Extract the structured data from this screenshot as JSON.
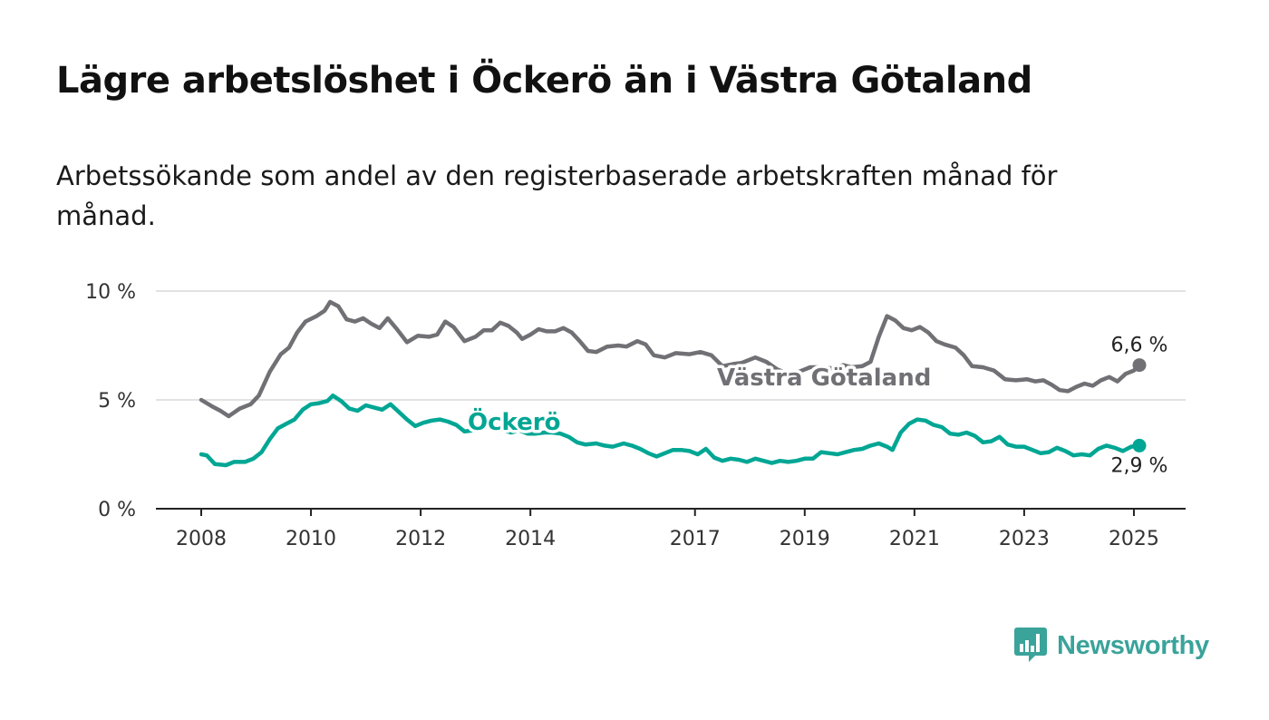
{
  "header": {
    "title": "Lägre arbetslöshet i Öckerö än i Västra Götaland",
    "subtitle": "Arbetssökande som andel av den registerbaserade arbetskraften månad för månad."
  },
  "brand": {
    "name": "Newsworthy",
    "icon": "newsworthy-logo-icon",
    "color": "#3aa39a"
  },
  "chart_data": {
    "type": "line",
    "title": "Lägre arbetslöshet i Öckerö än i Västra Götaland",
    "subtitle": "Arbetssökande som andel av den registerbaserade arbetskraften månad för månad.",
    "xlabel": "",
    "ylabel": "",
    "xlim": [
      2008.0,
      2025.1
    ],
    "ylim": [
      0,
      10
    ],
    "y_ticks": [
      0,
      5,
      10
    ],
    "y_tick_labels": [
      "0 %",
      "5 %",
      "10 %"
    ],
    "x_ticks": [
      2008,
      2010,
      2012,
      2014,
      2017,
      2019,
      2021,
      2023,
      2025
    ],
    "x_tick_labels": [
      "2008",
      "2010",
      "2012",
      "2014",
      "2017",
      "2019",
      "2021",
      "2023",
      "2025"
    ],
    "grid": "horizontal",
    "series": [
      {
        "name": "Västra Götaland",
        "color": "#707075",
        "end_label": "6,6 %",
        "points": [
          [
            2008.0,
            5.0
          ],
          [
            2008.2,
            4.7
          ],
          [
            2008.35,
            4.5
          ],
          [
            2008.5,
            4.25
          ],
          [
            2008.7,
            4.6
          ],
          [
            2008.9,
            4.8
          ],
          [
            2009.05,
            5.2
          ],
          [
            2009.25,
            6.3
          ],
          [
            2009.45,
            7.1
          ],
          [
            2009.6,
            7.4
          ],
          [
            2009.75,
            8.1
          ],
          [
            2009.9,
            8.6
          ],
          [
            2010.1,
            8.85
          ],
          [
            2010.25,
            9.1
          ],
          [
            2010.35,
            9.5
          ],
          [
            2010.5,
            9.3
          ],
          [
            2010.65,
            8.7
          ],
          [
            2010.8,
            8.6
          ],
          [
            2010.95,
            8.75
          ],
          [
            2011.1,
            8.5
          ],
          [
            2011.25,
            8.3
          ],
          [
            2011.4,
            8.75
          ],
          [
            2011.55,
            8.3
          ],
          [
            2011.75,
            7.65
          ],
          [
            2011.95,
            7.95
          ],
          [
            2012.15,
            7.9
          ],
          [
            2012.3,
            8.0
          ],
          [
            2012.45,
            8.6
          ],
          [
            2012.6,
            8.35
          ],
          [
            2012.8,
            7.7
          ],
          [
            2013.0,
            7.9
          ],
          [
            2013.15,
            8.2
          ],
          [
            2013.3,
            8.2
          ],
          [
            2013.45,
            8.55
          ],
          [
            2013.6,
            8.4
          ],
          [
            2013.75,
            8.1
          ],
          [
            2013.85,
            7.8
          ],
          [
            2014.0,
            8.0
          ],
          [
            2014.15,
            8.25
          ],
          [
            2014.3,
            8.15
          ],
          [
            2014.45,
            8.15
          ],
          [
            2014.6,
            8.3
          ],
          [
            2014.75,
            8.1
          ],
          [
            2014.9,
            7.7
          ],
          [
            2015.05,
            7.25
          ],
          [
            2015.2,
            7.2
          ],
          [
            2015.4,
            7.45
          ],
          [
            2015.6,
            7.5
          ],
          [
            2015.75,
            7.45
          ],
          [
            2015.95,
            7.7
          ],
          [
            2016.1,
            7.55
          ],
          [
            2016.25,
            7.05
          ],
          [
            2016.45,
            6.95
          ],
          [
            2016.65,
            7.15
          ],
          [
            2016.9,
            7.1
          ],
          [
            2017.1,
            7.2
          ],
          [
            2017.3,
            7.05
          ],
          [
            2017.5,
            6.55
          ],
          [
            2017.7,
            6.65
          ],
          [
            2017.85,
            6.7
          ],
          [
            2018.1,
            6.95
          ],
          [
            2018.3,
            6.75
          ],
          [
            2018.5,
            6.4
          ],
          [
            2018.7,
            6.2
          ],
          [
            2018.9,
            6.3
          ],
          [
            2019.1,
            6.5
          ],
          [
            2019.3,
            6.5
          ],
          [
            2019.5,
            6.45
          ],
          [
            2019.7,
            6.6
          ],
          [
            2019.85,
            6.5
          ],
          [
            2020.05,
            6.55
          ],
          [
            2020.2,
            6.75
          ],
          [
            2020.35,
            7.9
          ],
          [
            2020.5,
            8.85
          ],
          [
            2020.65,
            8.65
          ],
          [
            2020.8,
            8.3
          ],
          [
            2020.95,
            8.2
          ],
          [
            2021.1,
            8.35
          ],
          [
            2021.25,
            8.1
          ],
          [
            2021.4,
            7.7
          ],
          [
            2021.55,
            7.55
          ],
          [
            2021.75,
            7.4
          ],
          [
            2021.9,
            7.05
          ],
          [
            2022.05,
            6.55
          ],
          [
            2022.25,
            6.5
          ],
          [
            2022.45,
            6.35
          ],
          [
            2022.65,
            5.95
          ],
          [
            2022.85,
            5.9
          ],
          [
            2023.05,
            5.95
          ],
          [
            2023.2,
            5.85
          ],
          [
            2023.35,
            5.9
          ],
          [
            2023.5,
            5.7
          ],
          [
            2023.65,
            5.45
          ],
          [
            2023.8,
            5.4
          ],
          [
            2023.95,
            5.6
          ],
          [
            2024.1,
            5.75
          ],
          [
            2024.25,
            5.65
          ],
          [
            2024.4,
            5.9
          ],
          [
            2024.55,
            6.05
          ],
          [
            2024.7,
            5.85
          ],
          [
            2024.85,
            6.2
          ],
          [
            2025.0,
            6.35
          ],
          [
            2025.1,
            6.6
          ]
        ]
      },
      {
        "name": "Öckerö",
        "color": "#00a694",
        "end_label": "2,9 %",
        "points": [
          [
            2008.0,
            2.5
          ],
          [
            2008.1,
            2.45
          ],
          [
            2008.25,
            2.05
          ],
          [
            2008.45,
            2.0
          ],
          [
            2008.6,
            2.15
          ],
          [
            2008.8,
            2.15
          ],
          [
            2008.95,
            2.3
          ],
          [
            2009.1,
            2.6
          ],
          [
            2009.25,
            3.2
          ],
          [
            2009.4,
            3.7
          ],
          [
            2009.55,
            3.9
          ],
          [
            2009.7,
            4.1
          ],
          [
            2009.85,
            4.55
          ],
          [
            2010.0,
            4.8
          ],
          [
            2010.15,
            4.85
          ],
          [
            2010.3,
            4.95
          ],
          [
            2010.4,
            5.2
          ],
          [
            2010.55,
            4.95
          ],
          [
            2010.7,
            4.6
          ],
          [
            2010.85,
            4.5
          ],
          [
            2011.0,
            4.75
          ],
          [
            2011.15,
            4.65
          ],
          [
            2011.3,
            4.55
          ],
          [
            2011.45,
            4.8
          ],
          [
            2011.6,
            4.45
          ],
          [
            2011.75,
            4.1
          ],
          [
            2011.9,
            3.8
          ],
          [
            2012.05,
            3.95
          ],
          [
            2012.2,
            4.05
          ],
          [
            2012.35,
            4.1
          ],
          [
            2012.5,
            4.0
          ],
          [
            2012.65,
            3.85
          ],
          [
            2012.8,
            3.55
          ],
          [
            2012.95,
            3.6
          ],
          [
            2013.1,
            3.9
          ],
          [
            2013.2,
            4.2
          ],
          [
            2013.35,
            3.85
          ],
          [
            2013.5,
            3.6
          ],
          [
            2013.65,
            3.5
          ],
          [
            2013.8,
            3.6
          ],
          [
            2013.95,
            3.45
          ],
          [
            2014.1,
            3.45
          ],
          [
            2014.25,
            3.5
          ],
          [
            2014.4,
            3.5
          ],
          [
            2014.55,
            3.45
          ],
          [
            2014.7,
            3.3
          ],
          [
            2014.85,
            3.05
          ],
          [
            2015.0,
            2.95
          ],
          [
            2015.2,
            3.0
          ],
          [
            2015.35,
            2.9
          ],
          [
            2015.5,
            2.85
          ],
          [
            2015.7,
            3.0
          ],
          [
            2015.85,
            2.9
          ],
          [
            2016.0,
            2.75
          ],
          [
            2016.15,
            2.55
          ],
          [
            2016.3,
            2.4
          ],
          [
            2016.45,
            2.55
          ],
          [
            2016.6,
            2.7
          ],
          [
            2016.75,
            2.7
          ],
          [
            2016.9,
            2.65
          ],
          [
            2017.05,
            2.5
          ],
          [
            2017.2,
            2.75
          ],
          [
            2017.35,
            2.35
          ],
          [
            2017.5,
            2.2
          ],
          [
            2017.65,
            2.3
          ],
          [
            2017.8,
            2.25
          ],
          [
            2017.95,
            2.15
          ],
          [
            2018.1,
            2.3
          ],
          [
            2018.25,
            2.2
          ],
          [
            2018.4,
            2.1
          ],
          [
            2018.55,
            2.2
          ],
          [
            2018.7,
            2.15
          ],
          [
            2018.85,
            2.2
          ],
          [
            2019.0,
            2.3
          ],
          [
            2019.15,
            2.3
          ],
          [
            2019.3,
            2.6
          ],
          [
            2019.45,
            2.55
          ],
          [
            2019.6,
            2.5
          ],
          [
            2019.75,
            2.6
          ],
          [
            2019.9,
            2.7
          ],
          [
            2020.05,
            2.75
          ],
          [
            2020.2,
            2.9
          ],
          [
            2020.35,
            3.0
          ],
          [
            2020.5,
            2.85
          ],
          [
            2020.6,
            2.7
          ],
          [
            2020.75,
            3.5
          ],
          [
            2020.9,
            3.9
          ],
          [
            2021.05,
            4.1
          ],
          [
            2021.2,
            4.05
          ],
          [
            2021.35,
            3.85
          ],
          [
            2021.5,
            3.75
          ],
          [
            2021.65,
            3.45
          ],
          [
            2021.8,
            3.4
          ],
          [
            2021.95,
            3.5
          ],
          [
            2022.1,
            3.35
          ],
          [
            2022.25,
            3.05
          ],
          [
            2022.4,
            3.1
          ],
          [
            2022.55,
            3.3
          ],
          [
            2022.7,
            2.95
          ],
          [
            2022.85,
            2.85
          ],
          [
            2023.0,
            2.85
          ],
          [
            2023.15,
            2.7
          ],
          [
            2023.3,
            2.55
          ],
          [
            2023.45,
            2.6
          ],
          [
            2023.6,
            2.8
          ],
          [
            2023.75,
            2.65
          ],
          [
            2023.9,
            2.45
          ],
          [
            2024.05,
            2.5
          ],
          [
            2024.2,
            2.45
          ],
          [
            2024.35,
            2.75
          ],
          [
            2024.5,
            2.9
          ],
          [
            2024.65,
            2.8
          ],
          [
            2024.8,
            2.65
          ],
          [
            2024.95,
            2.85
          ],
          [
            2025.1,
            2.9
          ]
        ]
      }
    ]
  }
}
